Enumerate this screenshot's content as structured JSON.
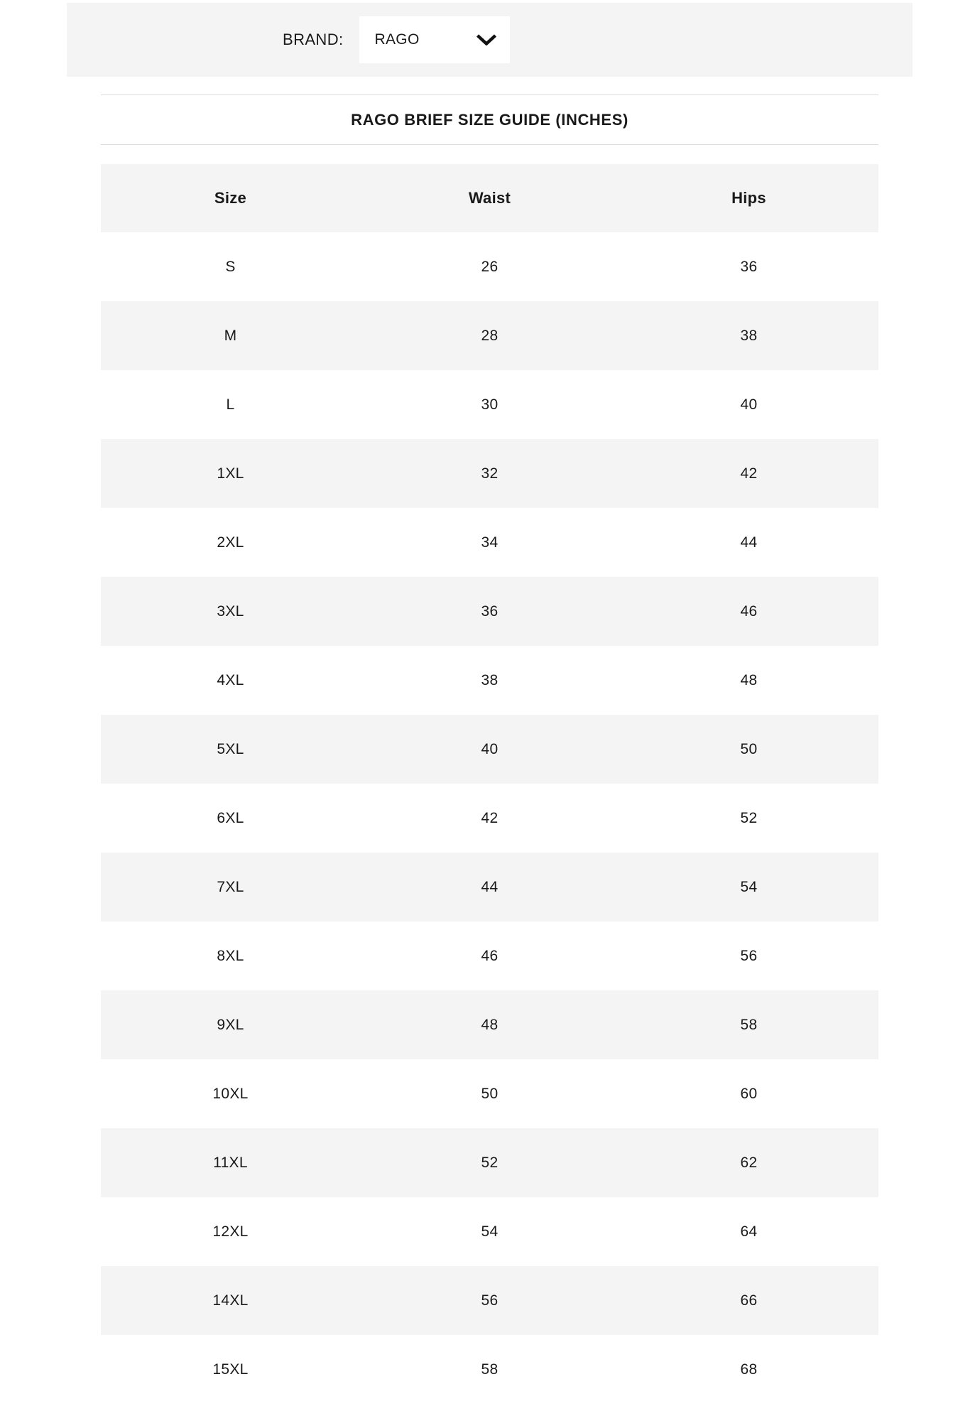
{
  "brand_bar": {
    "label": "BRAND:",
    "selected": "RAGO",
    "dropdown_icon": "chevron-down-icon"
  },
  "title": "RAGO BRIEF SIZE GUIDE (INCHES)",
  "table": {
    "columns": [
      "Size",
      "Waist",
      "Hips"
    ],
    "rows": [
      {
        "size": "S",
        "waist": "26",
        "hips": "36"
      },
      {
        "size": "M",
        "waist": "28",
        "hips": "38"
      },
      {
        "size": "L",
        "waist": "30",
        "hips": "40"
      },
      {
        "size": "1XL",
        "waist": "32",
        "hips": "42"
      },
      {
        "size": "2XL",
        "waist": "34",
        "hips": "44"
      },
      {
        "size": "3XL",
        "waist": "36",
        "hips": "46"
      },
      {
        "size": "4XL",
        "waist": "38",
        "hips": "48"
      },
      {
        "size": "5XL",
        "waist": "40",
        "hips": "50"
      },
      {
        "size": "6XL",
        "waist": "42",
        "hips": "52"
      },
      {
        "size": "7XL",
        "waist": "44",
        "hips": "54"
      },
      {
        "size": "8XL",
        "waist": "46",
        "hips": "56"
      },
      {
        "size": "9XL",
        "waist": "48",
        "hips": "58"
      },
      {
        "size": "10XL",
        "waist": "50",
        "hips": "60"
      },
      {
        "size": "11XL",
        "waist": "52",
        "hips": "62"
      },
      {
        "size": "12XL",
        "waist": "54",
        "hips": "64"
      },
      {
        "size": "14XL",
        "waist": "56",
        "hips": "66"
      },
      {
        "size": "15XL",
        "waist": "58",
        "hips": "68"
      }
    ]
  },
  "colors": {
    "bar_background": "#f4f4f4",
    "row_stripe_background": "#f4f4f4",
    "rule_line": "#dcdcdc",
    "text": "#1a1a1a",
    "dropdown_background": "#ffffff"
  }
}
